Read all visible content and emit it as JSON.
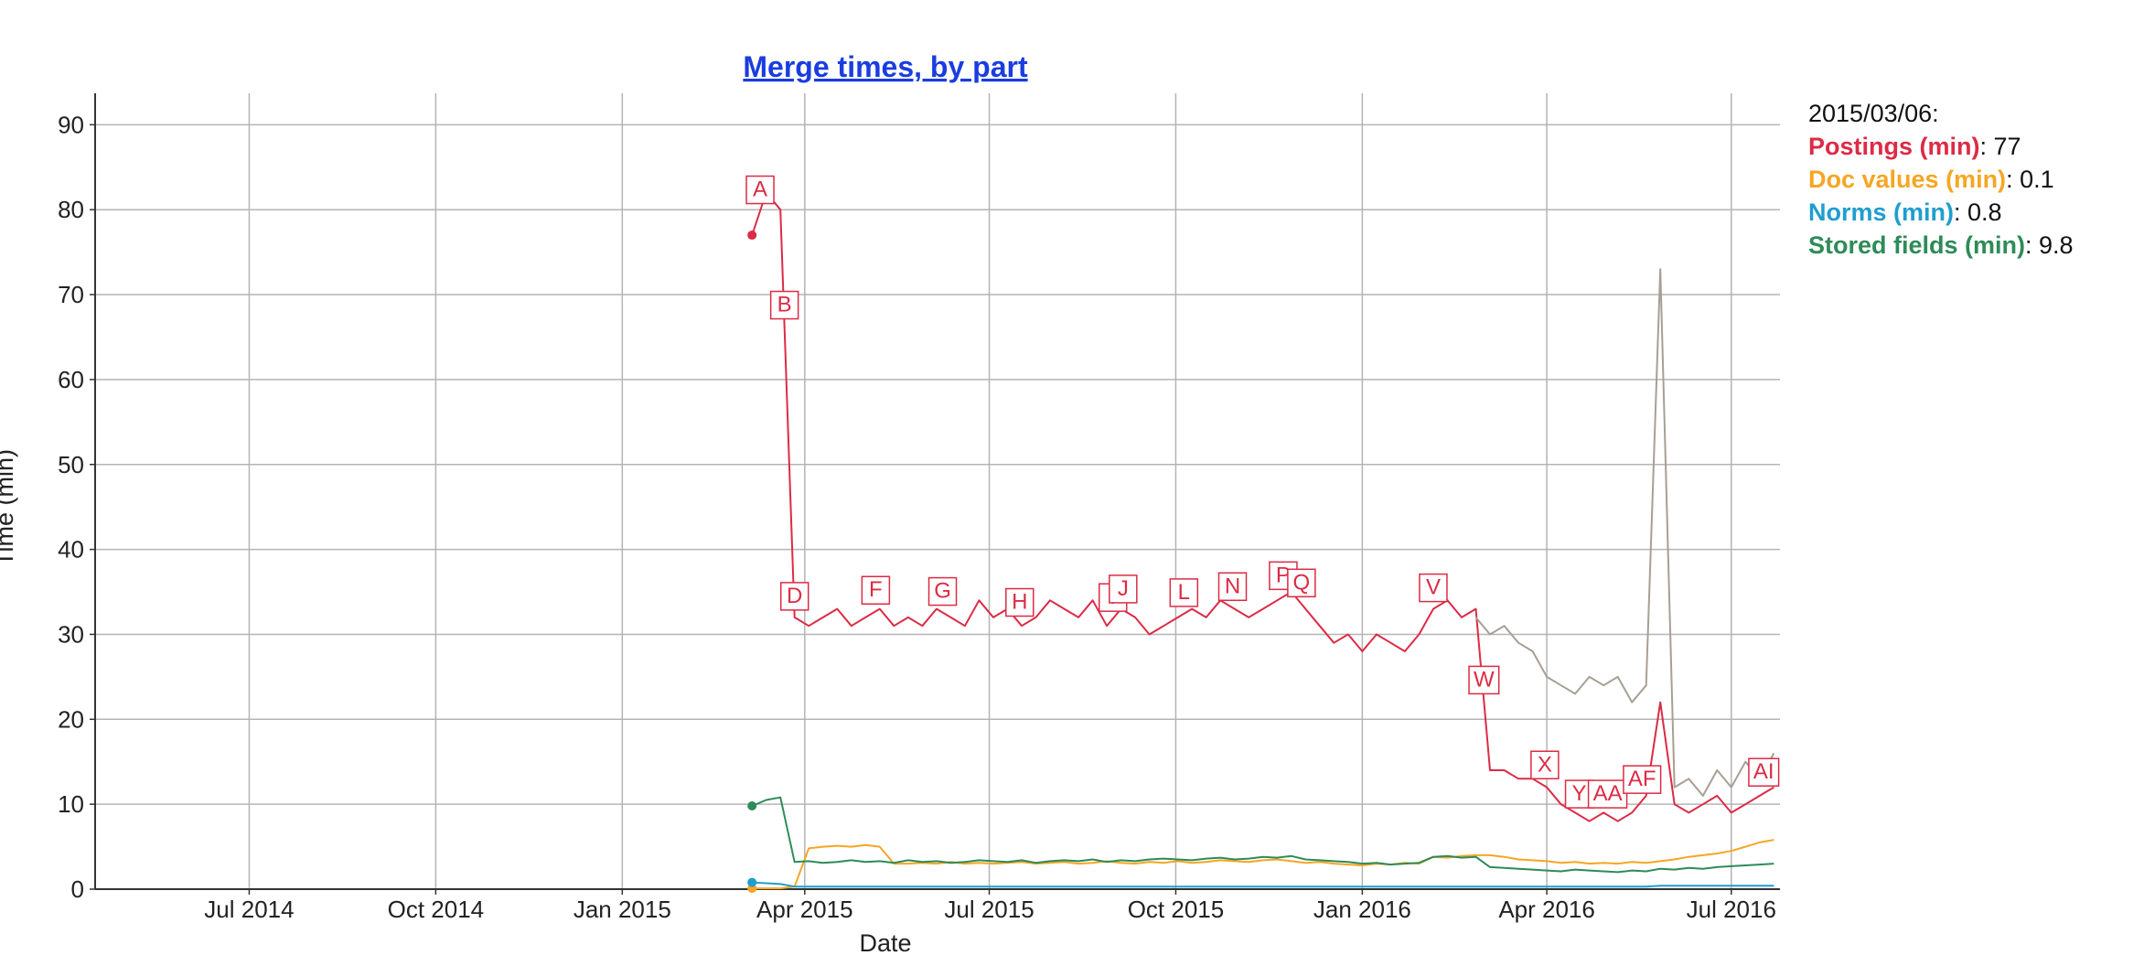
{
  "chart_data": {
    "type": "line",
    "title": "Merge times, by part",
    "x_label": "Date",
    "y_label": "Time (min)",
    "grid": true,
    "ylim": [
      0,
      93.7
    ],
    "yticks": [
      0,
      10,
      20,
      30,
      40,
      50,
      60,
      70,
      80,
      90
    ],
    "xlim": [
      "2014/04/16",
      "2016/07/25"
    ],
    "xticks": [
      {
        "value": "2014/07/01",
        "label": "Jul 2014"
      },
      {
        "value": "2014/10/01",
        "label": "Oct 2014"
      },
      {
        "value": "2015/01/01",
        "label": "Jan 2015"
      },
      {
        "value": "2015/04/01",
        "label": "Apr 2015"
      },
      {
        "value": "2015/07/01",
        "label": "Jul 2015"
      },
      {
        "value": "2015/10/01",
        "label": "Oct 2015"
      },
      {
        "value": "2016/01/01",
        "label": "Jan 2016"
      },
      {
        "value": "2016/04/01",
        "label": "Apr 2016"
      },
      {
        "value": "2016/07/01",
        "label": "Jul 2016"
      }
    ],
    "x": [
      "2015/03/06",
      "2015/03/13",
      "2015/03/20",
      "2015/03/27",
      "2015/04/03",
      "2015/04/10",
      "2015/04/17",
      "2015/04/24",
      "2015/05/01",
      "2015/05/08",
      "2015/05/15",
      "2015/05/22",
      "2015/05/29",
      "2015/06/05",
      "2015/06/12",
      "2015/06/19",
      "2015/06/26",
      "2015/07/03",
      "2015/07/10",
      "2015/07/17",
      "2015/07/24",
      "2015/07/31",
      "2015/08/07",
      "2015/08/14",
      "2015/08/21",
      "2015/08/28",
      "2015/09/04",
      "2015/09/11",
      "2015/09/18",
      "2015/09/25",
      "2015/10/02",
      "2015/10/09",
      "2015/10/16",
      "2015/10/23",
      "2015/10/30",
      "2015/11/06",
      "2015/11/13",
      "2015/11/20",
      "2015/11/27",
      "2015/12/04",
      "2015/12/11",
      "2015/12/18",
      "2015/12/25",
      "2016/01/01",
      "2016/01/08",
      "2016/01/15",
      "2016/01/22",
      "2016/01/29",
      "2016/02/05",
      "2016/02/12",
      "2016/02/19",
      "2016/02/26",
      "2016/03/04",
      "2016/03/11",
      "2016/03/18",
      "2016/03/25",
      "2016/04/01",
      "2016/04/08",
      "2016/04/15",
      "2016/04/22",
      "2016/04/29",
      "2016/05/06",
      "2016/05/13",
      "2016/05/20",
      "2016/05/27",
      "2016/06/03",
      "2016/06/10",
      "2016/06/17",
      "2016/06/24",
      "2016/07/01",
      "2016/07/08",
      "2016/07/15",
      "2016/07/22"
    ],
    "series": [
      {
        "name": "Postings (min)",
        "color": "#dc2b45",
        "values": [
          77,
          82,
          80,
          32,
          31,
          32,
          33,
          31,
          32,
          33,
          31,
          32,
          31,
          33,
          32,
          31,
          34,
          32,
          33,
          31,
          32,
          34,
          33,
          32,
          34,
          31,
          33,
          32,
          30,
          31,
          32,
          33,
          32,
          34,
          33,
          32,
          33,
          34,
          35,
          33,
          31,
          29,
          30,
          28,
          30,
          29,
          28,
          30,
          33,
          34,
          32,
          33,
          14,
          14,
          13,
          13,
          12,
          10,
          9,
          8,
          9,
          8,
          9,
          11,
          22,
          10,
          9,
          10,
          11,
          9,
          10,
          11,
          12
        ]
      },
      {
        "name": "Doc values (min)",
        "color": "#f5a623",
        "values": [
          0.1,
          0.1,
          0.1,
          0.3,
          4.8,
          5,
          5.1,
          5,
          5.2,
          5,
          3,
          3,
          3.1,
          3,
          3.2,
          3,
          3.1,
          3,
          3.1,
          3.2,
          3,
          3.1,
          3.2,
          3,
          3.1,
          3.3,
          3.1,
          3,
          3.2,
          3.1,
          3.3,
          3.1,
          3.2,
          3.4,
          3.3,
          3.2,
          3.4,
          3.5,
          3.3,
          3.1,
          3.2,
          3,
          2.9,
          2.8,
          3,
          2.9,
          3.1,
          3,
          3.8,
          3.7,
          3.9,
          4,
          4,
          3.8,
          3.5,
          3.4,
          3.3,
          3.1,
          3.2,
          3,
          3.1,
          3,
          3.2,
          3.1,
          3.3,
          3.5,
          3.8,
          4,
          4.2,
          4.5,
          5,
          5.5,
          5.8
        ]
      },
      {
        "name": "Norms (min)",
        "color": "#1f9ecf",
        "values": [
          0.8,
          0.7,
          0.6,
          0.3,
          0.3,
          0.3,
          0.3,
          0.3,
          0.3,
          0.3,
          0.3,
          0.3,
          0.3,
          0.3,
          0.3,
          0.3,
          0.3,
          0.3,
          0.3,
          0.3,
          0.3,
          0.3,
          0.3,
          0.3,
          0.3,
          0.3,
          0.3,
          0.3,
          0.3,
          0.3,
          0.3,
          0.3,
          0.3,
          0.3,
          0.3,
          0.3,
          0.3,
          0.3,
          0.3,
          0.3,
          0.3,
          0.3,
          0.3,
          0.3,
          0.3,
          0.3,
          0.3,
          0.3,
          0.3,
          0.3,
          0.3,
          0.3,
          0.3,
          0.3,
          0.3,
          0.3,
          0.3,
          0.3,
          0.3,
          0.3,
          0.3,
          0.3,
          0.3,
          0.3,
          0.4,
          0.4,
          0.4,
          0.4,
          0.4,
          0.4,
          0.4,
          0.4,
          0.4
        ]
      },
      {
        "name": "Stored fields (min)",
        "color": "#2e8b57",
        "values": [
          9.8,
          10.5,
          10.8,
          3.2,
          3.3,
          3.1,
          3.2,
          3.4,
          3.2,
          3.3,
          3.1,
          3.4,
          3.2,
          3.3,
          3.1,
          3.2,
          3.4,
          3.3,
          3.2,
          3.4,
          3.1,
          3.3,
          3.4,
          3.3,
          3.5,
          3.2,
          3.4,
          3.3,
          3.5,
          3.6,
          3.5,
          3.4,
          3.6,
          3.7,
          3.5,
          3.6,
          3.8,
          3.7,
          3.9,
          3.5,
          3.4,
          3.3,
          3.2,
          3,
          3.1,
          2.9,
          3,
          3.1,
          3.8,
          3.9,
          3.7,
          3.8,
          2.6,
          2.5,
          2.4,
          2.3,
          2.2,
          2.1,
          2.3,
          2.2,
          2.1,
          2,
          2.2,
          2.1,
          2.4,
          2.3,
          2.5,
          2.4,
          2.6,
          2.7,
          2.8,
          2.9,
          3
        ]
      },
      {
        "color": "#a89f94",
        "values": [
          null,
          null,
          null,
          null,
          null,
          null,
          null,
          null,
          null,
          null,
          null,
          null,
          null,
          null,
          null,
          null,
          null,
          null,
          null,
          null,
          null,
          null,
          null,
          null,
          null,
          null,
          null,
          null,
          null,
          null,
          null,
          null,
          null,
          null,
          null,
          null,
          null,
          null,
          null,
          null,
          null,
          null,
          null,
          null,
          null,
          null,
          null,
          null,
          null,
          null,
          null,
          32,
          30,
          31,
          29,
          28,
          25,
          24,
          23,
          25,
          24,
          25,
          22,
          24,
          73,
          12,
          13,
          11,
          14,
          12,
          15,
          13,
          16
        ]
      }
    ],
    "annotations": [
      {
        "x": "2015/03/10",
        "text": "A"
      },
      {
        "x": "2015/03/22",
        "text": "B"
      },
      {
        "x": "2015/03/27",
        "text": "D"
      },
      {
        "x": "2015/05/06",
        "text": "F"
      },
      {
        "x": "2015/06/08",
        "text": "G"
      },
      {
        "x": "2015/07/16",
        "text": "H"
      },
      {
        "x": "2015/08/31",
        "text": "I"
      },
      {
        "x": "2015/09/05",
        "text": "J"
      },
      {
        "x": "2015/10/05",
        "text": "L"
      },
      {
        "x": "2015/10/29",
        "text": "N"
      },
      {
        "x": "2015/11/23",
        "text": "P"
      },
      {
        "x": "2015/12/02",
        "text": "Q"
      },
      {
        "x": "2016/02/05",
        "text": "V"
      },
      {
        "x": "2016/03/01",
        "text": "W"
      },
      {
        "x": "2016/03/31",
        "text": "X"
      },
      {
        "x": "2016/04/17",
        "text": "Y"
      },
      {
        "x": "2016/05/01",
        "text": "AA"
      },
      {
        "x": "2016/05/18",
        "text": "AF"
      },
      {
        "x": "2016/07/17",
        "text": "AI"
      }
    ],
    "legend": {
      "title": "2015/03/06:",
      "separator": ": "
    }
  }
}
